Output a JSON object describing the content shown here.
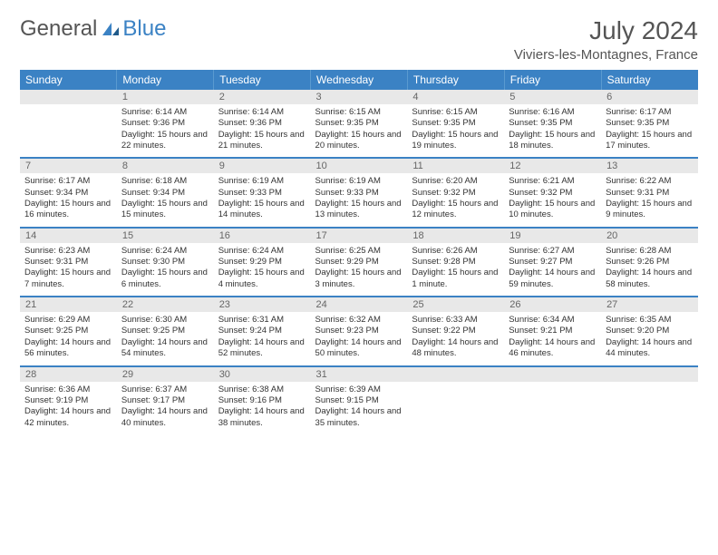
{
  "brand": {
    "general": "General",
    "blue": "Blue"
  },
  "title": "July 2024",
  "location": "Viviers-les-Montagnes, France",
  "colors": {
    "accent": "#3b82c4",
    "header_bg": "#3b82c4",
    "daynum_bg": "#e8e8e8"
  },
  "weekdays": [
    "Sunday",
    "Monday",
    "Tuesday",
    "Wednesday",
    "Thursday",
    "Friday",
    "Saturday"
  ],
  "weeks": [
    [
      null,
      {
        "n": "1",
        "sr": "Sunrise: 6:14 AM",
        "ss": "Sunset: 9:36 PM",
        "dl": "Daylight: 15 hours and 22 minutes."
      },
      {
        "n": "2",
        "sr": "Sunrise: 6:14 AM",
        "ss": "Sunset: 9:36 PM",
        "dl": "Daylight: 15 hours and 21 minutes."
      },
      {
        "n": "3",
        "sr": "Sunrise: 6:15 AM",
        "ss": "Sunset: 9:35 PM",
        "dl": "Daylight: 15 hours and 20 minutes."
      },
      {
        "n": "4",
        "sr": "Sunrise: 6:15 AM",
        "ss": "Sunset: 9:35 PM",
        "dl": "Daylight: 15 hours and 19 minutes."
      },
      {
        "n": "5",
        "sr": "Sunrise: 6:16 AM",
        "ss": "Sunset: 9:35 PM",
        "dl": "Daylight: 15 hours and 18 minutes."
      },
      {
        "n": "6",
        "sr": "Sunrise: 6:17 AM",
        "ss": "Sunset: 9:35 PM",
        "dl": "Daylight: 15 hours and 17 minutes."
      }
    ],
    [
      {
        "n": "7",
        "sr": "Sunrise: 6:17 AM",
        "ss": "Sunset: 9:34 PM",
        "dl": "Daylight: 15 hours and 16 minutes."
      },
      {
        "n": "8",
        "sr": "Sunrise: 6:18 AM",
        "ss": "Sunset: 9:34 PM",
        "dl": "Daylight: 15 hours and 15 minutes."
      },
      {
        "n": "9",
        "sr": "Sunrise: 6:19 AM",
        "ss": "Sunset: 9:33 PM",
        "dl": "Daylight: 15 hours and 14 minutes."
      },
      {
        "n": "10",
        "sr": "Sunrise: 6:19 AM",
        "ss": "Sunset: 9:33 PM",
        "dl": "Daylight: 15 hours and 13 minutes."
      },
      {
        "n": "11",
        "sr": "Sunrise: 6:20 AM",
        "ss": "Sunset: 9:32 PM",
        "dl": "Daylight: 15 hours and 12 minutes."
      },
      {
        "n": "12",
        "sr": "Sunrise: 6:21 AM",
        "ss": "Sunset: 9:32 PM",
        "dl": "Daylight: 15 hours and 10 minutes."
      },
      {
        "n": "13",
        "sr": "Sunrise: 6:22 AM",
        "ss": "Sunset: 9:31 PM",
        "dl": "Daylight: 15 hours and 9 minutes."
      }
    ],
    [
      {
        "n": "14",
        "sr": "Sunrise: 6:23 AM",
        "ss": "Sunset: 9:31 PM",
        "dl": "Daylight: 15 hours and 7 minutes."
      },
      {
        "n": "15",
        "sr": "Sunrise: 6:24 AM",
        "ss": "Sunset: 9:30 PM",
        "dl": "Daylight: 15 hours and 6 minutes."
      },
      {
        "n": "16",
        "sr": "Sunrise: 6:24 AM",
        "ss": "Sunset: 9:29 PM",
        "dl": "Daylight: 15 hours and 4 minutes."
      },
      {
        "n": "17",
        "sr": "Sunrise: 6:25 AM",
        "ss": "Sunset: 9:29 PM",
        "dl": "Daylight: 15 hours and 3 minutes."
      },
      {
        "n": "18",
        "sr": "Sunrise: 6:26 AM",
        "ss": "Sunset: 9:28 PM",
        "dl": "Daylight: 15 hours and 1 minute."
      },
      {
        "n": "19",
        "sr": "Sunrise: 6:27 AM",
        "ss": "Sunset: 9:27 PM",
        "dl": "Daylight: 14 hours and 59 minutes."
      },
      {
        "n": "20",
        "sr": "Sunrise: 6:28 AM",
        "ss": "Sunset: 9:26 PM",
        "dl": "Daylight: 14 hours and 58 minutes."
      }
    ],
    [
      {
        "n": "21",
        "sr": "Sunrise: 6:29 AM",
        "ss": "Sunset: 9:25 PM",
        "dl": "Daylight: 14 hours and 56 minutes."
      },
      {
        "n": "22",
        "sr": "Sunrise: 6:30 AM",
        "ss": "Sunset: 9:25 PM",
        "dl": "Daylight: 14 hours and 54 minutes."
      },
      {
        "n": "23",
        "sr": "Sunrise: 6:31 AM",
        "ss": "Sunset: 9:24 PM",
        "dl": "Daylight: 14 hours and 52 minutes."
      },
      {
        "n": "24",
        "sr": "Sunrise: 6:32 AM",
        "ss": "Sunset: 9:23 PM",
        "dl": "Daylight: 14 hours and 50 minutes."
      },
      {
        "n": "25",
        "sr": "Sunrise: 6:33 AM",
        "ss": "Sunset: 9:22 PM",
        "dl": "Daylight: 14 hours and 48 minutes."
      },
      {
        "n": "26",
        "sr": "Sunrise: 6:34 AM",
        "ss": "Sunset: 9:21 PM",
        "dl": "Daylight: 14 hours and 46 minutes."
      },
      {
        "n": "27",
        "sr": "Sunrise: 6:35 AM",
        "ss": "Sunset: 9:20 PM",
        "dl": "Daylight: 14 hours and 44 minutes."
      }
    ],
    [
      {
        "n": "28",
        "sr": "Sunrise: 6:36 AM",
        "ss": "Sunset: 9:19 PM",
        "dl": "Daylight: 14 hours and 42 minutes."
      },
      {
        "n": "29",
        "sr": "Sunrise: 6:37 AM",
        "ss": "Sunset: 9:17 PM",
        "dl": "Daylight: 14 hours and 40 minutes."
      },
      {
        "n": "30",
        "sr": "Sunrise: 6:38 AM",
        "ss": "Sunset: 9:16 PM",
        "dl": "Daylight: 14 hours and 38 minutes."
      },
      {
        "n": "31",
        "sr": "Sunrise: 6:39 AM",
        "ss": "Sunset: 9:15 PM",
        "dl": "Daylight: 14 hours and 35 minutes."
      },
      null,
      null,
      null
    ]
  ]
}
